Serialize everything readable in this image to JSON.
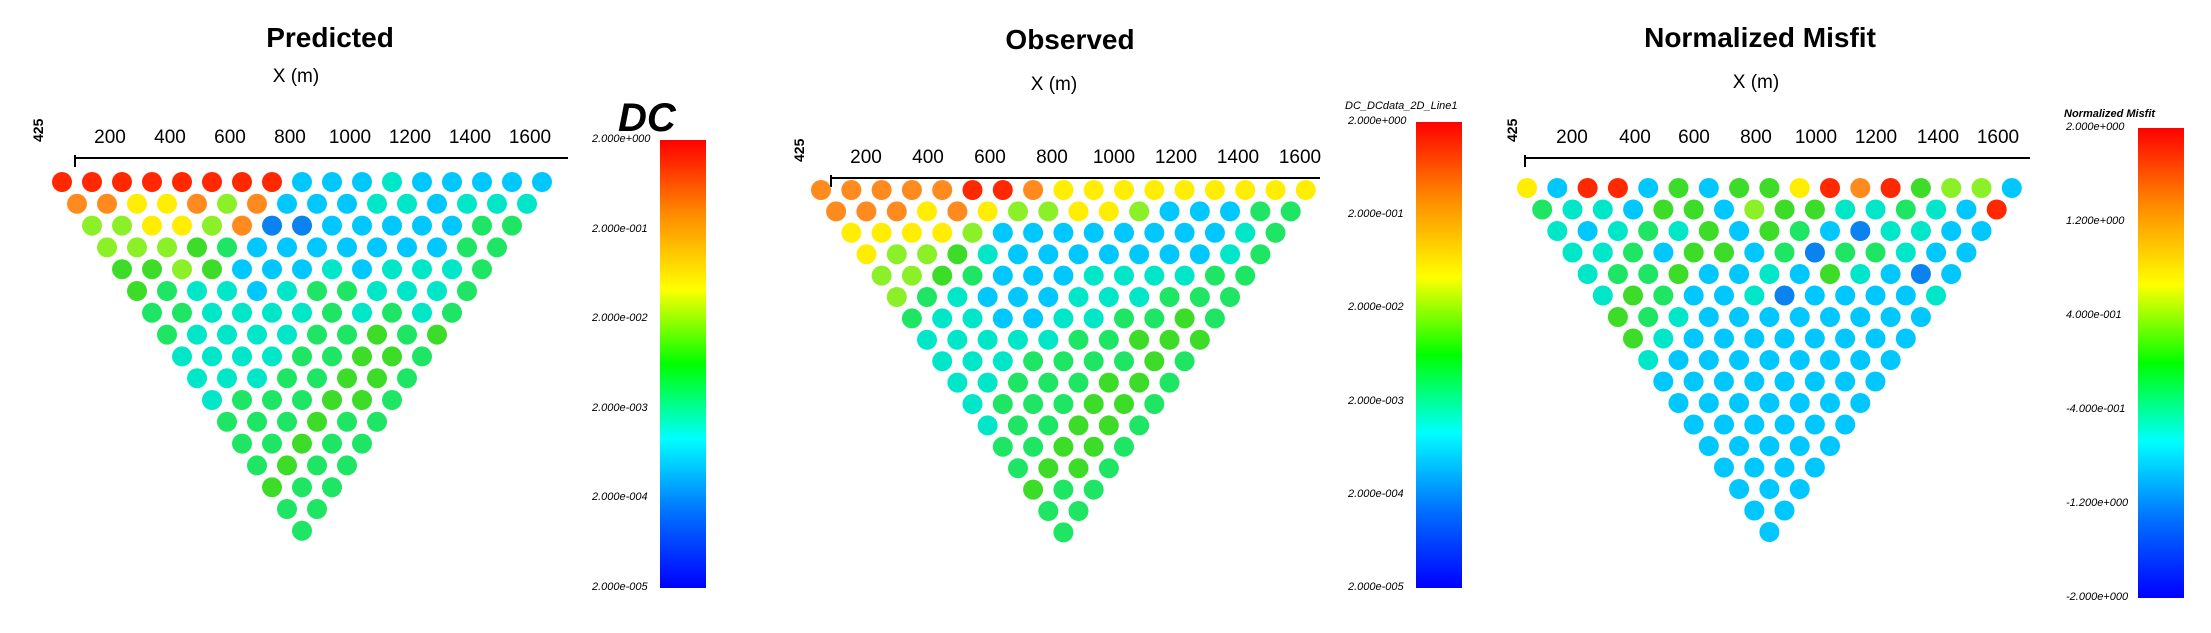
{
  "chart_data": [
    {
      "type": "scatter",
      "title": "Predicted",
      "xlabel": "X (m)",
      "x_ticks": [
        "200",
        "400",
        "600",
        "800",
        "1000",
        "1200",
        "1400",
        "1600"
      ],
      "y_tick_label": "425",
      "colorbar": {
        "title": "DC",
        "ticks": [
          "2.000e+000",
          "2.000e-001",
          "2.000e-002",
          "2.000e-003",
          "2.000e-004",
          "2.000e-005"
        ],
        "scale": "log",
        "colors": [
          "#ff0000",
          "#ff8c00",
          "#ffff00",
          "#00ff00",
          "#00ffff",
          "#0070ff",
          "#0000ff"
        ]
      },
      "grid": "off",
      "rows": [
        [
          10,
          10,
          10,
          10,
          10,
          10,
          10,
          10,
          3,
          3,
          3,
          4,
          3,
          3,
          3,
          3,
          3
        ],
        [
          9,
          9,
          8,
          8,
          9,
          7,
          9,
          3,
          3,
          3,
          4,
          4,
          3,
          4,
          4,
          4
        ],
        [
          7,
          7,
          8,
          8,
          7,
          9,
          2,
          2,
          3,
          3,
          3,
          3,
          3,
          5,
          5
        ],
        [
          7,
          7,
          7,
          6,
          5,
          3,
          3,
          3,
          3,
          3,
          3,
          3,
          5,
          5
        ],
        [
          6,
          6,
          7,
          6,
          3,
          3,
          3,
          4,
          3,
          4,
          4,
          4,
          5
        ],
        [
          6,
          5,
          4,
          4,
          3,
          4,
          5,
          5,
          4,
          4,
          4,
          5
        ],
        [
          5,
          5,
          4,
          4,
          4,
          4,
          5,
          4,
          5,
          4,
          5
        ],
        [
          5,
          4,
          4,
          4,
          4,
          5,
          5,
          6,
          5,
          6
        ],
        [
          4,
          4,
          4,
          4,
          5,
          5,
          6,
          6,
          5
        ],
        [
          4,
          4,
          4,
          5,
          5,
          6,
          6,
          5
        ],
        [
          4,
          5,
          5,
          5,
          6,
          6,
          5
        ],
        [
          5,
          5,
          5,
          6,
          5,
          5
        ],
        [
          5,
          5,
          6,
          5,
          5
        ],
        [
          5,
          6,
          5,
          5
        ],
        [
          6,
          5,
          5
        ],
        [
          5,
          5
        ],
        [
          5
        ]
      ]
    },
    {
      "type": "scatter",
      "title": "Observed",
      "xlabel": "X (m)",
      "x_ticks": [
        "200",
        "400",
        "600",
        "800",
        "1000",
        "1200",
        "1400",
        "1600"
      ],
      "y_tick_label": "425",
      "colorbar": {
        "title": "DC_DCdata_2D_Line1",
        "ticks": [
          "2.000e+000",
          "2.000e-001",
          "2.000e-002",
          "2.000e-003",
          "2.000e-004",
          "2.000e-005"
        ],
        "scale": "log",
        "colors": [
          "#ff0000",
          "#ff8c00",
          "#ffff00",
          "#00ff00",
          "#00ffff",
          "#0070ff",
          "#0000ff"
        ]
      },
      "grid": "off",
      "rows": [
        [
          9,
          9,
          9,
          9,
          9,
          10,
          10,
          9,
          8,
          8,
          8,
          8,
          8,
          8,
          8,
          8,
          8
        ],
        [
          9,
          9,
          9,
          8,
          9,
          8,
          7,
          7,
          8,
          8,
          7,
          3,
          3,
          3,
          5,
          5
        ],
        [
          8,
          8,
          8,
          8,
          7,
          3,
          3,
          3,
          3,
          3,
          3,
          3,
          3,
          4,
          5
        ],
        [
          8,
          7,
          7,
          6,
          4,
          3,
          3,
          3,
          3,
          3,
          3,
          3,
          4,
          5
        ],
        [
          7,
          7,
          6,
          5,
          3,
          3,
          3,
          4,
          4,
          4,
          4,
          5,
          5
        ],
        [
          7,
          5,
          4,
          3,
          3,
          3,
          4,
          4,
          4,
          5,
          5,
          5
        ],
        [
          5,
          4,
          4,
          3,
          3,
          4,
          4,
          5,
          5,
          6,
          5
        ],
        [
          4,
          4,
          4,
          4,
          4,
          5,
          5,
          6,
          6,
          6
        ],
        [
          4,
          4,
          4,
          5,
          5,
          5,
          5,
          6,
          5
        ],
        [
          4,
          4,
          5,
          5,
          5,
          6,
          6,
          5
        ],
        [
          4,
          5,
          5,
          5,
          6,
          6,
          5
        ],
        [
          4,
          5,
          5,
          6,
          6,
          5
        ],
        [
          5,
          5,
          6,
          6,
          5
        ],
        [
          5,
          6,
          6,
          5
        ],
        [
          6,
          5,
          5
        ],
        [
          5,
          5
        ],
        [
          5
        ]
      ]
    },
    {
      "type": "scatter",
      "title": "Normalized Misfit",
      "xlabel": "X (m)",
      "x_ticks": [
        "200",
        "400",
        "600",
        "800",
        "1000",
        "1200",
        "1400",
        "1600"
      ],
      "y_tick_label": "425",
      "colorbar": {
        "title": "Normalized Misfit",
        "ticks": [
          "2.000e+000",
          "1.200e+000",
          "4.000e-001",
          "-4.000e-001",
          "-1.200e+000",
          "-2.000e+000"
        ],
        "scale": "linear",
        "colors": [
          "#ff0000",
          "#ff8c00",
          "#ffff00",
          "#00ff00",
          "#00ffff",
          "#0070ff",
          "#0000ff"
        ]
      },
      "grid": "off",
      "rows": [
        [
          8,
          3,
          10,
          10,
          3,
          6,
          3,
          6,
          6,
          8,
          10,
          9,
          10,
          6,
          7,
          7,
          3
        ],
        [
          5,
          4,
          4,
          3,
          6,
          6,
          3,
          7,
          6,
          6,
          4,
          4,
          5,
          4,
          3,
          10
        ],
        [
          4,
          3,
          4,
          5,
          4,
          6,
          3,
          6,
          5,
          3,
          2,
          4,
          4,
          3,
          3
        ],
        [
          4,
          4,
          5,
          3,
          6,
          6,
          3,
          5,
          2,
          5,
          5,
          4,
          3,
          3
        ],
        [
          4,
          5,
          5,
          6,
          3,
          3,
          4,
          3,
          6,
          4,
          3,
          2,
          3
        ],
        [
          4,
          6,
          5,
          3,
          3,
          4,
          2,
          3,
          3,
          3,
          3,
          4
        ],
        [
          6,
          5,
          4,
          3,
          3,
          3,
          3,
          3,
          3,
          3,
          3
        ],
        [
          6,
          4,
          3,
          3,
          3,
          3,
          3,
          3,
          3,
          3
        ],
        [
          4,
          3,
          3,
          3,
          3,
          3,
          3,
          3,
          3
        ],
        [
          3,
          3,
          3,
          3,
          3,
          3,
          3,
          3
        ],
        [
          3,
          3,
          3,
          3,
          3,
          3,
          3
        ],
        [
          3,
          3,
          3,
          3,
          3,
          3
        ],
        [
          3,
          3,
          3,
          3,
          3
        ],
        [
          3,
          3,
          3,
          3
        ],
        [
          3,
          3,
          3
        ],
        [
          3,
          3
        ],
        [
          3
        ]
      ]
    }
  ]
}
